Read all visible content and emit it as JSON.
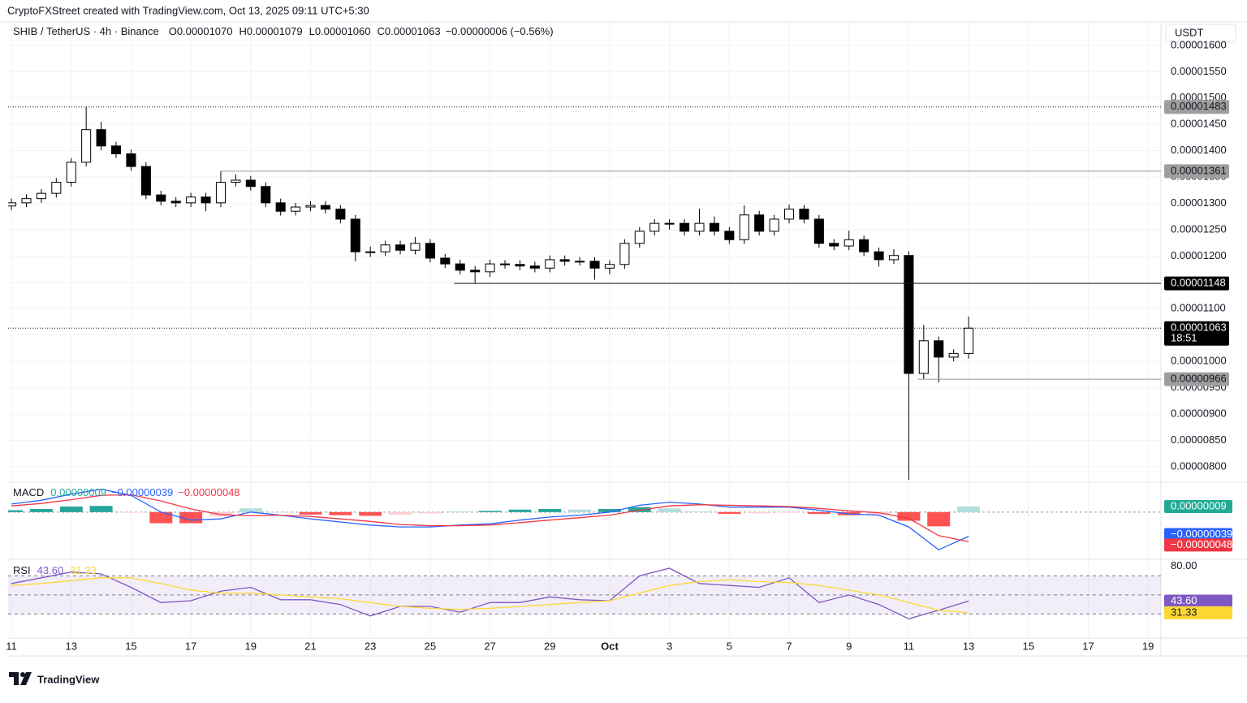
{
  "header": {
    "attribution": "CryptoFXStreet created with TradingView.com, Oct 13, 2025 09:11 UTC+5:30",
    "currency": "USDT"
  },
  "chart_data": [
    {
      "type": "candlestick",
      "symbol": "SHIB / TetherUS · 4h · Binance",
      "ohlc": [
        {
          "label": "O",
          "value": "0.00001070"
        },
        {
          "label": "H",
          "value": "0.00001079"
        },
        {
          "label": "L",
          "value": "0.00001060"
        },
        {
          "label": "C",
          "value": "0.00001063"
        }
      ],
      "change": "−0.00000006 (−0.56%)",
      "x": [
        0,
        0.5,
        1,
        1.5,
        2,
        2.5,
        3,
        3.5,
        4,
        4.5,
        5,
        5.5,
        6,
        6.5,
        7,
        7.5,
        8,
        8.5,
        9,
        9.5,
        10,
        10.5,
        11,
        11.5,
        12,
        12.5,
        13,
        13.5,
        14,
        14.5,
        15,
        15.5,
        16,
        16.5,
        17,
        17.5,
        18,
        18.5,
        19,
        19.5,
        20,
        20.5,
        21,
        21.5,
        22,
        22.5,
        23,
        23.5,
        24,
        24.5,
        25,
        25.5,
        26,
        26.5,
        27,
        27.5,
        28,
        28.5,
        29,
        29.5,
        30,
        30.5,
        31,
        31.5,
        32
      ],
      "open": [
        1.295e-05,
        1.301e-05,
        1.309e-05,
        1.319e-05,
        1.34e-05,
        1.378e-05,
        1.44e-05,
        1.409e-05,
        1.394e-05,
        1.37e-05,
        1.316e-05,
        1.304e-05,
        1.301e-05,
        1.312e-05,
        1.301e-05,
        1.34e-05,
        1.344e-05,
        1.332e-05,
        1.301e-05,
        1.285e-05,
        1.293e-05,
        1.296e-05,
        1.289e-05,
        1.27e-05,
        1.208e-05,
        1.208e-05,
        1.221e-05,
        1.211e-05,
        1.224e-05,
        1.196e-05,
        1.185e-05,
        1.173e-05,
        1.17e-05,
        1.185e-05,
        1.184e-05,
        1.181e-05,
        1.177e-05,
        1.193e-05,
        1.19e-05,
        1.19e-05,
        1.177e-05,
        1.184e-05,
        1.224e-05,
        1.247e-05,
        1.262e-05,
        1.262e-05,
        1.247e-05,
        1.262e-05,
        1.247e-05,
        1.231e-05,
        1.278e-05,
        1.247e-05,
        1.27e-05,
        1.289e-05,
        1.27e-05,
        1.224e-05,
        1.219e-05,
        1.231e-05,
        1.208e-05,
        1.193e-05,
        1.201e-05,
        9.77e-06,
        1.039e-05,
        1.008e-05,
        1.015e-05
      ],
      "high": [
        1.309e-05,
        1.317e-05,
        1.327e-05,
        1.348e-05,
        1.386e-05,
        1.483e-05,
        1.455e-05,
        1.417e-05,
        1.402e-05,
        1.378e-05,
        1.324e-05,
        1.312e-05,
        1.32e-05,
        1.32e-05,
        1.361e-05,
        1.355e-05,
        1.352e-05,
        1.34e-05,
        1.309e-05,
        1.301e-05,
        1.304e-05,
        1.304e-05,
        1.297e-05,
        1.278e-05,
        1.218e-05,
        1.229e-05,
        1.229e-05,
        1.236e-05,
        1.232e-05,
        1.204e-05,
        1.193e-05,
        1.181e-05,
        1.193e-05,
        1.192e-05,
        1.192e-05,
        1.189e-05,
        1.201e-05,
        1.201e-05,
        1.198e-05,
        1.198e-05,
        1.192e-05,
        1.232e-05,
        1.255e-05,
        1.27e-05,
        1.27e-05,
        1.27e-05,
        1.29e-05,
        1.275e-05,
        1.255e-05,
        1.296e-05,
        1.286e-05,
        1.278e-05,
        1.298e-05,
        1.297e-05,
        1.278e-05,
        1.232e-05,
        1.248e-05,
        1.239e-05,
        1.216e-05,
        1.213e-05,
        1.209e-05,
        1.069e-05,
        1.047e-05,
        1.023e-05,
        1.085e-05
      ],
      "low": [
        1.287e-05,
        1.293e-05,
        1.301e-05,
        1.311e-05,
        1.332e-05,
        1.37e-05,
        1.401e-05,
        1.386e-05,
        1.362e-05,
        1.308e-05,
        1.296e-05,
        1.293e-05,
        1.293e-05,
        1.285e-05,
        1.293e-05,
        1.332e-05,
        1.324e-05,
        1.293e-05,
        1.277e-05,
        1.277e-05,
        1.285e-05,
        1.281e-05,
        1.262e-05,
        1.19e-05,
        1.198e-05,
        1.2e-05,
        1.203e-05,
        1.203e-05,
        1.188e-05,
        1.177e-05,
        1.165e-05,
        1.148e-05,
        1.16e-05,
        1.176e-05,
        1.173e-05,
        1.169e-05,
        1.169e-05,
        1.182e-05,
        1.182e-05,
        1.155e-05,
        1.165e-05,
        1.176e-05,
        1.216e-05,
        1.239e-05,
        1.25e-05,
        1.239e-05,
        1.239e-05,
        1.239e-05,
        1.223e-05,
        1.223e-05,
        1.239e-05,
        1.239e-05,
        1.262e-05,
        1.262e-05,
        1.216e-05,
        1.211e-05,
        1.211e-05,
        1.2e-05,
        1.18e-05,
        1.185e-05,
        7.75e-06,
        9.66e-06,
        9.6e-06,
        1e-05,
        1.005e-05
      ],
      "close": [
        1.301e-05,
        1.309e-05,
        1.319e-05,
        1.34e-05,
        1.378e-05,
        1.44e-05,
        1.409e-05,
        1.394e-05,
        1.37e-05,
        1.316e-05,
        1.304e-05,
        1.301e-05,
        1.312e-05,
        1.301e-05,
        1.34e-05,
        1.344e-05,
        1.332e-05,
        1.301e-05,
        1.285e-05,
        1.293e-05,
        1.296e-05,
        1.289e-05,
        1.27e-05,
        1.208e-05,
        1.208e-05,
        1.221e-05,
        1.211e-05,
        1.224e-05,
        1.196e-05,
        1.185e-05,
        1.173e-05,
        1.17e-05,
        1.185e-05,
        1.184e-05,
        1.181e-05,
        1.177e-05,
        1.193e-05,
        1.19e-05,
        1.19e-05,
        1.177e-05,
        1.184e-05,
        1.224e-05,
        1.247e-05,
        1.262e-05,
        1.262e-05,
        1.247e-05,
        1.262e-05,
        1.247e-05,
        1.231e-05,
        1.278e-05,
        1.247e-05,
        1.27e-05,
        1.289e-05,
        1.27e-05,
        1.224e-05,
        1.219e-05,
        1.231e-05,
        1.208e-05,
        1.193e-05,
        1.201e-05,
        9.77e-06,
        1.039e-05,
        1.008e-05,
        1.015e-05,
        1.063e-05
      ],
      "up_color": "#ffffff",
      "down_color": "#000000",
      "wick_color": "#000000",
      "xlim": [
        -0.11,
        38.43
      ],
      "xticks": [
        {
          "value": 0,
          "label": "11"
        },
        {
          "value": 2,
          "label": "13"
        },
        {
          "value": 4,
          "label": "15"
        },
        {
          "value": 6,
          "label": "17"
        },
        {
          "value": 8,
          "label": "19"
        },
        {
          "value": 10,
          "label": "21"
        },
        {
          "value": 12,
          "label": "23"
        },
        {
          "value": 14,
          "label": "25"
        },
        {
          "value": 16,
          "label": "27"
        },
        {
          "value": 18,
          "label": "29"
        },
        {
          "value": 20,
          "label": "Oct"
        },
        {
          "value": 22,
          "label": "3"
        },
        {
          "value": 24,
          "label": "5"
        },
        {
          "value": 26,
          "label": "7"
        },
        {
          "value": 28,
          "label": "9"
        },
        {
          "value": 30,
          "label": "11"
        },
        {
          "value": 32,
          "label": "13"
        },
        {
          "value": 34,
          "label": "15"
        },
        {
          "value": 36,
          "label": "17"
        },
        {
          "value": 38,
          "label": "19"
        }
      ],
      "ylim": [
        7.72e-06,
        1.643e-05
      ],
      "yticks": [
        {
          "value": 8e-06,
          "label": "0.00000800"
        },
        {
          "value": 8.5e-06,
          "label": "0.00000850"
        },
        {
          "value": 9e-06,
          "label": "0.00000900"
        },
        {
          "value": 9.5e-06,
          "label": "0.00000950"
        },
        {
          "value": 1e-05,
          "label": "0.00001000"
        },
        {
          "value": 1.05e-05,
          "label": "0.00001050"
        },
        {
          "value": 1.1e-05,
          "label": "0.00001100"
        },
        {
          "value": 1.15e-05,
          "label": "0.00001150"
        },
        {
          "value": 1.2e-05,
          "label": "0.00001200"
        },
        {
          "value": 1.25e-05,
          "label": "0.00001250"
        },
        {
          "value": 1.3e-05,
          "label": "0.00001300"
        },
        {
          "value": 1.35e-05,
          "label": "0.00001350"
        },
        {
          "value": 1.4e-05,
          "label": "0.00001400"
        },
        {
          "value": 1.45e-05,
          "label": "0.00001450"
        },
        {
          "value": 1.5e-05,
          "label": "0.00001500"
        },
        {
          "value": 1.55e-05,
          "label": "0.00001550"
        },
        {
          "value": 1.6e-05,
          "label": "0.00001600"
        }
      ],
      "grid": true,
      "levels": [
        {
          "value": 1.483e-05,
          "style": "dotted",
          "color": "#131722",
          "label_bg": "#9e9e9e",
          "label_color": "#131722"
        },
        {
          "value": 1.361e-05,
          "from": 7,
          "style": "solid",
          "color": "#9598a1",
          "label_bg": "#9e9e9e",
          "label_color": "#131722"
        },
        {
          "value": 1.148e-05,
          "from": 14.8,
          "style": "solid",
          "color": "#131722",
          "label_bg": "#000000",
          "label_color": "#ffffff"
        },
        {
          "value": 1.063e-05,
          "style": "dotted",
          "color": "#131722",
          "label_bg": "#000000",
          "label_color": "#ffffff",
          "countdown": "18:51"
        },
        {
          "value": 9.66e-06,
          "from": 30.3,
          "style": "solid",
          "color": "#9598a1",
          "label_bg": "#9e9e9e",
          "label_color": "#131722"
        }
      ]
    },
    {
      "type": "macd",
      "title": "MACD",
      "x": [
        0,
        1,
        2,
        3,
        4,
        5,
        6,
        7,
        8,
        9,
        10,
        11,
        12,
        13,
        14,
        15,
        16,
        17,
        18,
        19,
        20,
        21,
        22,
        23,
        24,
        25,
        26,
        27,
        28,
        29,
        30,
        31,
        32
      ],
      "xlim": [
        -0.11,
        38.43
      ],
      "ylim": [
        -7.5e-07,
        4.7e-07
      ],
      "histogram": {
        "values": [
          3e-08,
          5e-08,
          9e-08,
          1e-07,
          -1e-08,
          -1.8e-07,
          -1.8e-07,
          -7e-08,
          6e-08,
          0,
          -4e-08,
          -5e-08,
          -6e-08,
          -4e-08,
          -2e-08,
          1e-08,
          2e-08,
          4e-08,
          5e-08,
          4e-08,
          5e-08,
          8e-08,
          6e-08,
          1e-08,
          -3e-08,
          -2e-08,
          -1e-08,
          -3e-08,
          -5e-08,
          -4e-08,
          -1.4e-07,
          -2.3e-07,
          9e-08
        ],
        "colors": {
          "grow_above": "#26a69a",
          "fall_above": "#b2dfdb",
          "grow_below": "#ff5252",
          "fall_below": "#ffcdd2"
        },
        "last_label": "0.00000009",
        "label_bg": "#22ab94"
      },
      "series": [
        {
          "color": "#2962ff",
          "values": [
            1.3e-07,
            1.9e-07,
            2.9e-07,
            3.7e-07,
            2.7e-07,
            0,
            -1.3e-07,
            -1.1e-07,
            0,
            -5e-08,
            -1.1e-07,
            -1.6e-07,
            -2.1e-07,
            -2.4e-07,
            -2.4e-07,
            -2.1e-07,
            -1.9e-07,
            -1.3e-07,
            -8e-08,
            -5e-08,
            0,
            1.1e-07,
            1.6e-07,
            1.3e-07,
            8e-08,
            8e-08,
            8e-08,
            3e-08,
            -3e-08,
            -5e-08,
            -2.4e-07,
            -6.1e-07,
            -3.9e-07
          ],
          "last_label": "−0.00000039"
        },
        {
          "color": "#f23645",
          "values": [
            1e-07,
            1.4e-07,
            2e-07,
            2.7e-07,
            2.8e-07,
            1.8e-07,
            5e-08,
            -4e-08,
            -6e-08,
            -5e-08,
            -7e-08,
            -1.1e-07,
            -1.5e-07,
            -2e-07,
            -2.2e-07,
            -2.2e-07,
            -2.1e-07,
            -1.7e-07,
            -1.3e-07,
            -9e-08,
            -5e-08,
            3e-08,
            1e-07,
            1.2e-07,
            1.1e-07,
            1e-07,
            9e-08,
            6e-08,
            2e-08,
            -1e-08,
            -1e-07,
            -3.8e-07,
            -4.8e-07
          ],
          "last_label": "−0.00000048"
        }
      ]
    },
    {
      "type": "rsi",
      "title": "RSI",
      "x": [
        0,
        1,
        2,
        3,
        4,
        5,
        6,
        7,
        8,
        9,
        10,
        11,
        12,
        13,
        14,
        15,
        16,
        17,
        18,
        19,
        20,
        21,
        22,
        23,
        24,
        25,
        26,
        27,
        28,
        29,
        30,
        31,
        32
      ],
      "xlim": [
        -0.11,
        38.43
      ],
      "ylim": [
        5.7,
        86.5
      ],
      "yticks": [
        {
          "value": 80,
          "label": "80.00"
        }
      ],
      "levels": [
        70,
        50,
        30
      ],
      "band_color": "rgba(126,87,194,0.1)",
      "series": [
        {
          "color": "#7e57c2",
          "values": [
            62,
            68,
            74,
            72,
            58,
            42,
            44,
            54,
            58,
            45,
            45,
            40,
            28,
            38,
            38,
            32,
            42,
            42,
            48,
            45,
            44,
            70,
            78,
            62,
            60,
            58,
            68,
            42,
            50,
            40,
            25,
            34,
            43.6
          ],
          "last_label": "43.60"
        },
        {
          "color": "#fdd835",
          "values": [
            60,
            62,
            65,
            68,
            68,
            62,
            55,
            52,
            52,
            50,
            48,
            46,
            42,
            38,
            36,
            35,
            36,
            38,
            40,
            42,
            44,
            52,
            60,
            64,
            66,
            64,
            63,
            60,
            55,
            50,
            42,
            34,
            31.33
          ],
          "last_label": "31.33"
        }
      ]
    }
  ],
  "footer": {
    "logo": "TradingView"
  }
}
